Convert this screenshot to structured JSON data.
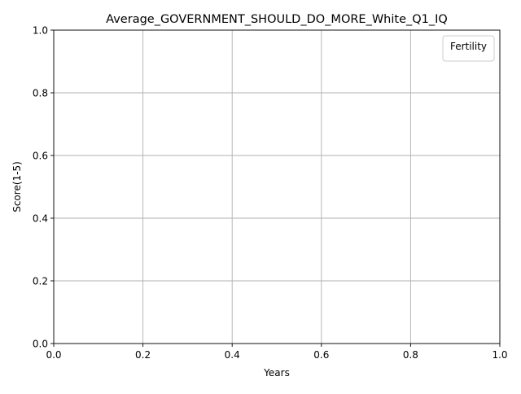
{
  "chart_data": {
    "type": "line",
    "title": "Average_GOVERNMENT_SHOULD_DO_MORE_White_Q1_IQ",
    "xlabel": "Years",
    "ylabel": "Score(1-5)",
    "xlim": [
      0.0,
      1.0
    ],
    "ylim": [
      0.0,
      1.0
    ],
    "xticks": [
      "0.0",
      "0.2",
      "0.4",
      "0.6",
      "0.8",
      "1.0"
    ],
    "yticks": [
      "0.0",
      "0.2",
      "0.4",
      "0.6",
      "0.8",
      "1.0"
    ],
    "grid": true,
    "series": [],
    "legend": {
      "title": "Fertility",
      "placement": "top-right",
      "entries": []
    }
  },
  "colors": {
    "axis": "#000000",
    "grid": "#b0b0b0",
    "legend_border": "#cccccc",
    "background": "#ffffff"
  }
}
